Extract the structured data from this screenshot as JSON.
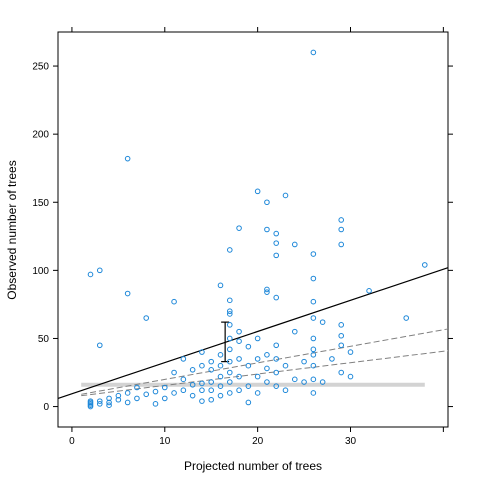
{
  "chart_data": {
    "type": "scatter",
    "xlabel": "Projected number of trees",
    "ylabel": "Observed number of trees",
    "xlim": [
      -1.5,
      40.5
    ],
    "ylim": [
      -15,
      275
    ],
    "xticks": [
      0,
      10,
      20,
      30
    ],
    "yticks": [
      0,
      50,
      100,
      150,
      200,
      250
    ],
    "grid": false,
    "legend": "none",
    "point_color": "#1e88d9",
    "points": [
      [
        2,
        0
      ],
      [
        2,
        1
      ],
      [
        2,
        2
      ],
      [
        2,
        3
      ],
      [
        2,
        4
      ],
      [
        3,
        2
      ],
      [
        3,
        4
      ],
      [
        4,
        1
      ],
      [
        4,
        3
      ],
      [
        4,
        6
      ],
      [
        5,
        5
      ],
      [
        5,
        8
      ],
      [
        6,
        3
      ],
      [
        6,
        10
      ],
      [
        7,
        6
      ],
      [
        7,
        14
      ],
      [
        8,
        9
      ],
      [
        9,
        2
      ],
      [
        9,
        11
      ],
      [
        10,
        6
      ],
      [
        10,
        14
      ],
      [
        11,
        10
      ],
      [
        11,
        25
      ],
      [
        12,
        12
      ],
      [
        12,
        20
      ],
      [
        12,
        35
      ],
      [
        13,
        8
      ],
      [
        13,
        16
      ],
      [
        13,
        27
      ],
      [
        14,
        4
      ],
      [
        14,
        12
      ],
      [
        14,
        17
      ],
      [
        14,
        30
      ],
      [
        14,
        40
      ],
      [
        15,
        5
      ],
      [
        15,
        12
      ],
      [
        15,
        18
      ],
      [
        15,
        27
      ],
      [
        15,
        33
      ],
      [
        16,
        8
      ],
      [
        16,
        15
      ],
      [
        16,
        22
      ],
      [
        16,
        30
      ],
      [
        16,
        38
      ],
      [
        17,
        10
      ],
      [
        17,
        18
      ],
      [
        17,
        25
      ],
      [
        17,
        33
      ],
      [
        17,
        42
      ],
      [
        17,
        50
      ],
      [
        17,
        60
      ],
      [
        17,
        70
      ],
      [
        18,
        12
      ],
      [
        18,
        22
      ],
      [
        18,
        35
      ],
      [
        18,
        48
      ],
      [
        18,
        55
      ],
      [
        19,
        3
      ],
      [
        19,
        15
      ],
      [
        19,
        30
      ],
      [
        19,
        44
      ],
      [
        20,
        10
      ],
      [
        20,
        22
      ],
      [
        20,
        35
      ],
      [
        20,
        50
      ],
      [
        21,
        18
      ],
      [
        21,
        28
      ],
      [
        21,
        38
      ],
      [
        22,
        15
      ],
      [
        22,
        25
      ],
      [
        22,
        35
      ],
      [
        22,
        45
      ],
      [
        23,
        12
      ],
      [
        23,
        30
      ],
      [
        24,
        20
      ],
      [
        24,
        55
      ],
      [
        25,
        18
      ],
      [
        25,
        33
      ],
      [
        26,
        10
      ],
      [
        26,
        20
      ],
      [
        26,
        30
      ],
      [
        26,
        38
      ],
      [
        26,
        42
      ],
      [
        26,
        50
      ],
      [
        26,
        65
      ],
      [
        27,
        18
      ],
      [
        27,
        62
      ],
      [
        28,
        35
      ],
      [
        29,
        25
      ],
      [
        29,
        45
      ],
      [
        29,
        52
      ],
      [
        29,
        60
      ],
      [
        30,
        40
      ],
      [
        30,
        22
      ],
      [
        32,
        85
      ],
      [
        36,
        65
      ],
      [
        38,
        104
      ],
      [
        2,
        97
      ],
      [
        3,
        100
      ],
      [
        3,
        45
      ],
      [
        6,
        182
      ],
      [
        6,
        83
      ],
      [
        8,
        65
      ],
      [
        11,
        77
      ],
      [
        16,
        89
      ],
      [
        17,
        115
      ],
      [
        17,
        78
      ],
      [
        18,
        131
      ],
      [
        20,
        158
      ],
      [
        21,
        150
      ],
      [
        21,
        130
      ],
      [
        22,
        127
      ],
      [
        22,
        120
      ],
      [
        22,
        111
      ],
      [
        23,
        155
      ],
      [
        24,
        119
      ],
      [
        21,
        86
      ],
      [
        21,
        84
      ],
      [
        22,
        80
      ],
      [
        26,
        260
      ],
      [
        26,
        112
      ],
      [
        26,
        94
      ],
      [
        26,
        77
      ],
      [
        29,
        137
      ],
      [
        29,
        130
      ],
      [
        29,
        119
      ],
      [
        17,
        68
      ]
    ],
    "fit_line": {
      "x": [
        -1.5,
        40.5
      ],
      "y": [
        6,
        102
      ],
      "color": "#000000"
    },
    "dashed_lines": [
      {
        "x": [
          1,
          40.5
        ],
        "y": [
          9,
          57
        ],
        "color": "#808080"
      },
      {
        "x": [
          1,
          40.5
        ],
        "y": [
          8,
          41
        ],
        "color": "#808080"
      }
    ],
    "reference_band": {
      "x": [
        1,
        38
      ],
      "y": 16,
      "color": "#d3d3d3"
    },
    "error_bar": {
      "x": 16.5,
      "low": 33,
      "high": 62,
      "color": "#000000"
    }
  }
}
